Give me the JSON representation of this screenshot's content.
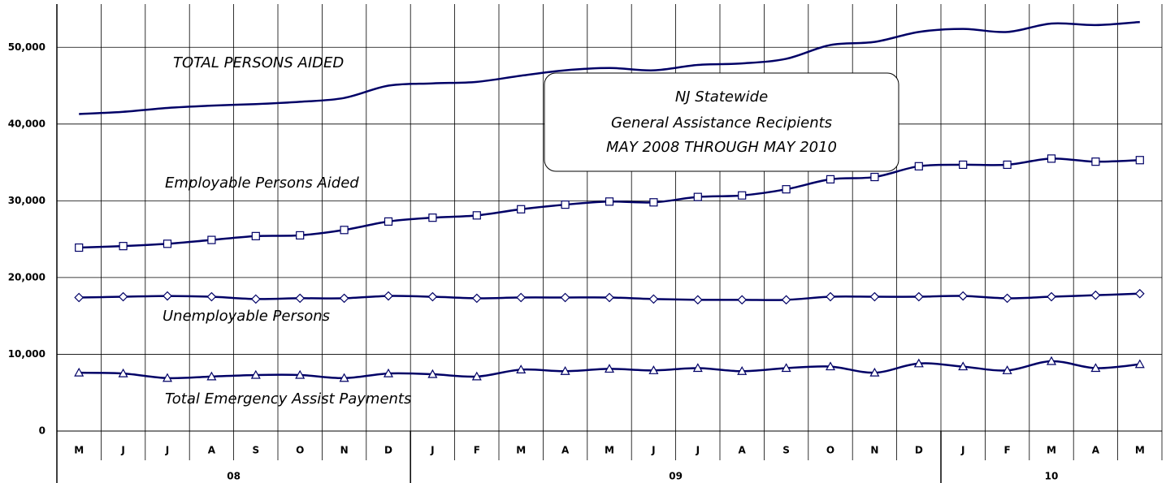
{
  "chart_data": {
    "type": "line",
    "title": "NJ Statewide",
    "subtitle": [
      "General Assistance Recipients",
      "MAY 2008 THROUGH MAY 2010"
    ],
    "categories": [
      "M",
      "J",
      "J",
      "A",
      "S",
      "O",
      "N",
      "D",
      "J",
      "F",
      "M",
      "A",
      "M",
      "J",
      "J",
      "A",
      "S",
      "O",
      "N",
      "D",
      "J",
      "F",
      "M",
      "A",
      "M"
    ],
    "groups": [
      {
        "label": "08",
        "span": 8
      },
      {
        "label": "09",
        "span": 12
      },
      {
        "label": "10",
        "span": 5
      }
    ],
    "ylim": [
      0,
      55000
    ],
    "yticks": [
      0,
      {
        "value": 10000,
        "label": "10,000"
      },
      {
        "value": 20000,
        "label": "20,000"
      },
      {
        "value": 30000,
        "label": "30,000"
      },
      {
        "value": 40000,
        "label": "40,000"
      },
      {
        "value": 50000,
        "label": "50,000"
      }
    ],
    "grid": true,
    "series": [
      {
        "name": "TOTAL PERSONS AIDED",
        "color": "#000066",
        "marker": "none",
        "values": [
          41300,
          41600,
          42100,
          42400,
          42600,
          42900,
          43400,
          45000,
          45300,
          45500,
          46300,
          47000,
          47300,
          47000,
          47700,
          47900,
          48500,
          50300,
          50700,
          52000,
          52400,
          52000,
          53100,
          52900,
          53300
        ]
      },
      {
        "name": "Employable Persons Aided",
        "color": "#000066",
        "marker": "square",
        "values": [
          23900,
          24100,
          24400,
          24900,
          25400,
          25500,
          26200,
          27300,
          27800,
          28100,
          28900,
          29500,
          29900,
          29800,
          30500,
          30700,
          31500,
          32800,
          33100,
          34500,
          34700,
          34700,
          35500,
          35100,
          35300
        ]
      },
      {
        "name": "Unemployable Persons",
        "color": "#000066",
        "marker": "diamond",
        "values": [
          17400,
          17500,
          17600,
          17500,
          17200,
          17300,
          17300,
          17600,
          17500,
          17300,
          17400,
          17400,
          17400,
          17200,
          17100,
          17100,
          17100,
          17500,
          17500,
          17500,
          17600,
          17300,
          17500,
          17700,
          17900
        ]
      },
      {
        "name": "Total Emergency Assist Payments",
        "color": "#000066",
        "marker": "triangle",
        "values": [
          7600,
          7500,
          6900,
          7100,
          7300,
          7300,
          6900,
          7500,
          7400,
          7100,
          8000,
          7800,
          8100,
          7900,
          8200,
          7800,
          8200,
          8400,
          7600,
          8800,
          8400,
          7900,
          9100,
          8200,
          8700
        ]
      }
    ]
  }
}
